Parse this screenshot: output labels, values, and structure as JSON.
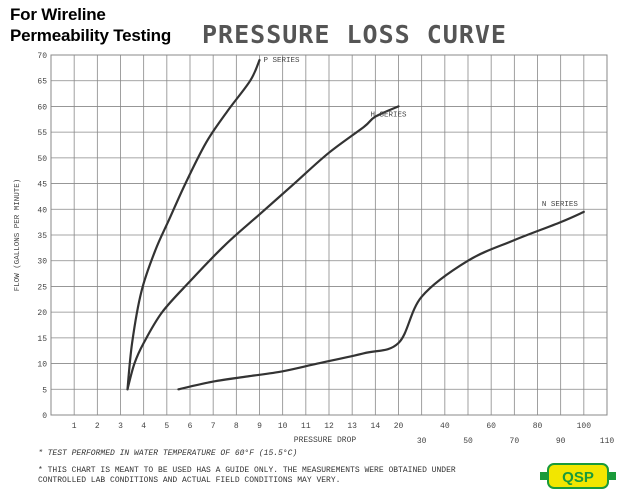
{
  "header": {
    "line1": "For Wireline",
    "line2": "Permeability Testing"
  },
  "footnotes": {
    "note1": "*  TEST PERFORMED IN WATER TEMPERATURE OF 60°F (15.5°C)",
    "note2": "*  THIS CHART IS MEANT TO BE USED HAS A GUIDE ONLY. THE MEASUREMENTS WERE OBTAINED UNDER",
    "note3": "   CONTROLLED LAB CONDITIONS AND ACTUAL FIELD CONDITIONS MAY VERY."
  },
  "logo": {
    "text": "QSP",
    "color": "#f2e600",
    "accent": "#1a9a3a"
  },
  "colors": {
    "grid": "#888888",
    "curve": "#333333",
    "text": "#444444"
  },
  "chart_data": {
    "type": "line",
    "title": "PRESSURE LOSS CURVE",
    "xlabel": "PRESSURE DROP",
    "ylabel": "FLOW (GALLONS PER MINUTE)",
    "ylim": [
      0,
      70
    ],
    "y_ticks": [
      0,
      5,
      10,
      15,
      20,
      25,
      30,
      35,
      40,
      45,
      50,
      55,
      60,
      65,
      70
    ],
    "x_ticks_upper": [
      "1",
      "2",
      "3",
      "4",
      "5",
      "6",
      "7",
      "8",
      "9",
      "10",
      "11",
      "12",
      "13",
      "14",
      "20",
      "40",
      "60",
      "80",
      "100"
    ],
    "x_ticks_lower": [
      "30",
      "50",
      "70",
      "90",
      "110"
    ],
    "x_axis_note": "nonlinear pressure drop scale: 1 to 14 in unit steps, then 20 to 110 in steps of 10",
    "grid": true,
    "series": [
      {
        "name": "P SERIES",
        "points": [
          [
            3.3,
            5
          ],
          [
            3.5,
            14
          ],
          [
            3.9,
            24
          ],
          [
            4.5,
            32
          ],
          [
            5.1,
            38
          ],
          [
            5.8,
            45
          ],
          [
            6.7,
            53
          ],
          [
            7.6,
            59
          ],
          [
            8.6,
            65
          ],
          [
            9.0,
            69
          ]
        ]
      },
      {
        "name": "H SERIES",
        "points": [
          [
            3.3,
            5
          ],
          [
            3.6,
            10
          ],
          [
            4.0,
            14
          ],
          [
            4.8,
            20
          ],
          [
            6.0,
            26
          ],
          [
            7.5,
            33
          ],
          [
            9.0,
            39
          ],
          [
            10.5,
            45
          ],
          [
            12.0,
            51
          ],
          [
            13.5,
            56
          ],
          [
            14.0,
            58
          ],
          [
            20,
            60
          ]
        ]
      },
      {
        "name": "N SERIES",
        "points": [
          [
            5.5,
            5
          ],
          [
            7.0,
            6.5
          ],
          [
            8.5,
            7.5
          ],
          [
            10.0,
            8.5
          ],
          [
            11.5,
            10
          ],
          [
            13.5,
            12
          ],
          [
            20,
            14
          ],
          [
            30,
            23
          ],
          [
            50,
            30
          ],
          [
            70,
            34
          ],
          [
            90,
            37.5
          ],
          [
            100,
            39.5
          ]
        ]
      }
    ]
  }
}
